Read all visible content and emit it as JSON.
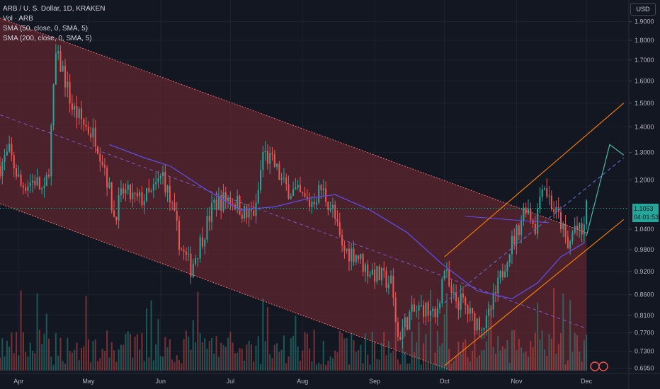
{
  "legend": {
    "title": "ARB / U. S. Dollar, 1D, KRAKEN",
    "volume": "Vol · ARB",
    "sma50": "SMA (50, close, 0, SMA, 5)",
    "sma200": "SMA (200, close, 0, SMA, 5)"
  },
  "axis": {
    "currency": "USD"
  },
  "last_price": {
    "value": "1.1053",
    "countdown": "04:01:53"
  },
  "colors": {
    "up": "#26a69a",
    "down": "#ef5350",
    "sma50": "#5b4bd6",
    "channel_fill": "#7a2a33",
    "channel_line": "#f06b6b",
    "up_channel": "#f57c00",
    "projection": "#4db6ac"
  },
  "chart_data": {
    "type": "candlestick",
    "symbol": "ARB / U. S. Dollar",
    "timeframe": "1D",
    "exchange": "KRAKEN",
    "y_scale": "log",
    "ylim": [
      0.69,
      1.95
    ],
    "y_ticks": [
      0.695,
      0.73,
      0.77,
      0.81,
      0.86,
      0.92,
      0.98,
      1.04,
      1.1053,
      1.2,
      1.3,
      1.4,
      1.5,
      1.6,
      1.7,
      1.8,
      1.9
    ],
    "y_tick_labels": [
      "0.6950",
      "0.7300",
      "0.7700",
      "0.8100",
      "0.8600",
      "0.9200",
      "0.9800",
      "1.0400",
      "",
      "1.2000",
      "1.3000",
      "1.4000",
      "1.5000",
      "1.6000",
      "1.7000",
      "1.8000",
      "1.9000"
    ],
    "x_labels": [
      {
        "label": "Apr",
        "date": "2023-04-01"
      },
      {
        "label": "May",
        "date": "2023-05-01"
      },
      {
        "label": "Jun",
        "date": "2023-06-01"
      },
      {
        "label": "Jul",
        "date": "2023-07-01"
      },
      {
        "label": "Aug",
        "date": "2023-08-01"
      },
      {
        "label": "Sep",
        "date": "2023-09-01"
      },
      {
        "label": "Oct",
        "date": "2023-10-01"
      },
      {
        "label": "Nov",
        "date": "2023-11-01"
      },
      {
        "label": "Dec",
        "date": "2023-12-01"
      }
    ],
    "price_path": [
      [
        "2023-03-24",
        1.25
      ],
      [
        "2023-03-28",
        1.3
      ],
      [
        "2023-04-02",
        1.18
      ],
      [
        "2023-04-08",
        1.2
      ],
      [
        "2023-04-12",
        1.15
      ],
      [
        "2023-04-14",
        1.25
      ],
      [
        "2023-04-17",
        1.72
      ],
      [
        "2023-04-20",
        1.65
      ],
      [
        "2023-04-24",
        1.48
      ],
      [
        "2023-04-30",
        1.4
      ],
      [
        "2023-05-04",
        1.36
      ],
      [
        "2023-05-08",
        1.25
      ],
      [
        "2023-05-12",
        1.08
      ],
      [
        "2023-05-16",
        1.16
      ],
      [
        "2023-05-22",
        1.13
      ],
      [
        "2023-05-28",
        1.15
      ],
      [
        "2023-06-02",
        1.22
      ],
      [
        "2023-06-06",
        1.1
      ],
      [
        "2023-06-10",
        0.98
      ],
      [
        "2023-06-14",
        0.93
      ],
      [
        "2023-06-18",
        1.0
      ],
      [
        "2023-06-24",
        1.12
      ],
      [
        "2023-06-30",
        1.14
      ],
      [
        "2023-07-04",
        1.12
      ],
      [
        "2023-07-08",
        1.08
      ],
      [
        "2023-07-12",
        1.1
      ],
      [
        "2023-07-15",
        1.3
      ],
      [
        "2023-07-20",
        1.25
      ],
      [
        "2023-07-24",
        1.18
      ],
      [
        "2023-07-30",
        1.15
      ],
      [
        "2023-08-04",
        1.12
      ],
      [
        "2023-08-09",
        1.17
      ],
      [
        "2023-08-14",
        1.1
      ],
      [
        "2023-08-18",
        0.98
      ],
      [
        "2023-08-24",
        0.97
      ],
      [
        "2023-08-28",
        0.93
      ],
      [
        "2023-09-02",
        0.91
      ],
      [
        "2023-09-08",
        0.89
      ],
      [
        "2023-09-11",
        0.76
      ],
      [
        "2023-09-16",
        0.81
      ],
      [
        "2023-09-22",
        0.83
      ],
      [
        "2023-09-27",
        0.8
      ],
      [
        "2023-10-01",
        0.93
      ],
      [
        "2023-10-04",
        0.85
      ],
      [
        "2023-10-09",
        0.84
      ],
      [
        "2023-10-13",
        0.8
      ],
      [
        "2023-10-19",
        0.79
      ],
      [
        "2023-10-24",
        0.88
      ],
      [
        "2023-10-28",
        0.97
      ],
      [
        "2023-11-01",
        1.03
      ],
      [
        "2023-11-05",
        1.12
      ],
      [
        "2023-11-09",
        1.05
      ],
      [
        "2023-11-12",
        1.2
      ],
      [
        "2023-11-17",
        1.1
      ],
      [
        "2023-11-20",
        1.06
      ],
      [
        "2023-11-23",
        0.98
      ],
      [
        "2023-11-26",
        1.05
      ],
      [
        "2023-11-29",
        1.02
      ],
      [
        "2023-12-01",
        1.1053
      ]
    ],
    "sma50_path": [
      [
        "2023-05-10",
        1.33
      ],
      [
        "2023-05-25",
        1.28
      ],
      [
        "2023-06-05",
        1.25
      ],
      [
        "2023-06-20",
        1.17
      ],
      [
        "2023-07-05",
        1.1
      ],
      [
        "2023-07-20",
        1.11
      ],
      [
        "2023-08-05",
        1.14
      ],
      [
        "2023-08-15",
        1.15
      ],
      [
        "2023-08-30",
        1.1
      ],
      [
        "2023-09-15",
        1.03
      ],
      [
        "2023-09-30",
        0.94
      ],
      [
        "2023-10-15",
        0.87
      ],
      [
        "2023-10-30",
        0.85
      ],
      [
        "2023-11-10",
        0.89
      ],
      [
        "2023-11-20",
        0.96
      ],
      [
        "2023-11-30",
        1.0
      ]
    ],
    "sma200_path": [
      [
        "2023-10-10",
        1.08
      ],
      [
        "2023-11-15",
        1.06
      ]
    ],
    "descending_channel": {
      "upper": [
        [
          "2023-03-24",
          1.92
        ],
        [
          "2023-12-01",
          1.03
        ]
      ],
      "lower": [
        [
          "2023-03-24",
          1.12
        ],
        [
          "2023-10-10",
          0.68
        ]
      ],
      "mid": [
        [
          "2023-03-24",
          1.45
        ],
        [
          "2023-12-01",
          0.78
        ]
      ],
      "fill_end": "2023-12-01"
    },
    "ascending_channel": {
      "upper": [
        [
          "2023-10-01",
          0.96
        ],
        [
          "2023-12-17",
          1.5
        ]
      ],
      "lower": [
        [
          "2023-10-01",
          0.7
        ],
        [
          "2023-12-17",
          1.07
        ]
      ],
      "mid": [
        [
          "2023-10-01",
          0.84
        ],
        [
          "2023-12-17",
          1.28
        ]
      ]
    },
    "projection": [
      [
        "2023-12-01",
        1.02
      ],
      [
        "2023-12-11",
        1.33
      ],
      [
        "2023-12-17",
        1.29
      ]
    ],
    "volume_note": "Volume histogram along the bottom, colored by candle direction",
    "last_price": 1.1053
  }
}
